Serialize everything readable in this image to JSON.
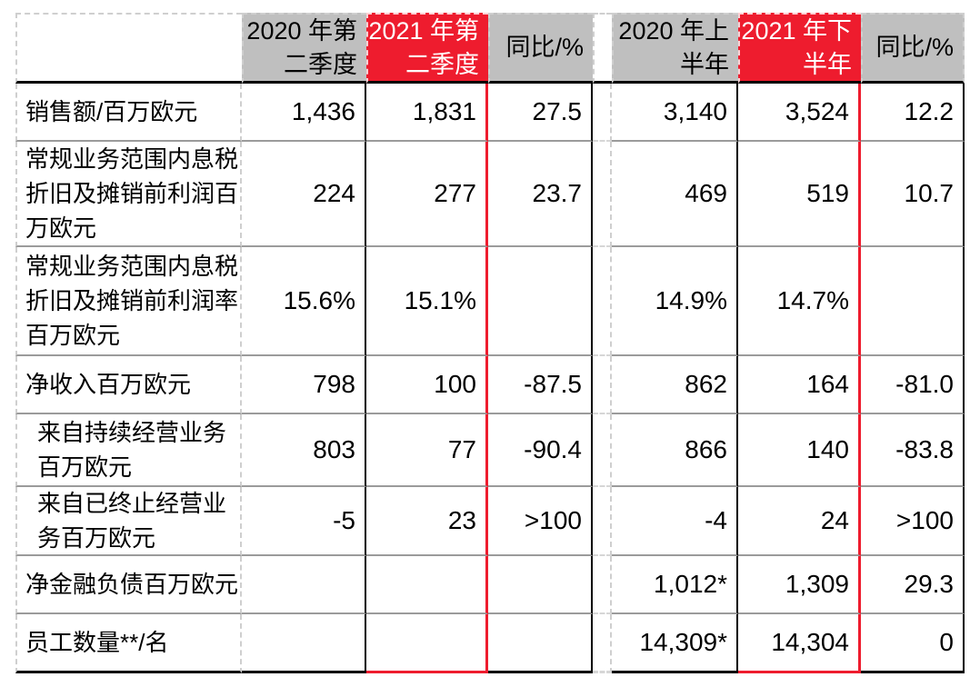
{
  "colors": {
    "red": "#EE1C2E",
    "gray": "#BFBFBF"
  },
  "table": {
    "header": [
      "",
      "2020 年第\n二季度",
      "2021 年第\n二季度",
      "同比/%",
      "",
      "2020 年上\n半年",
      "2021 年下\n半年",
      "同比/%"
    ],
    "rows": [
      {
        "label": "销售额/百万欧元",
        "values": [
          "1,436",
          "1,831",
          "27.5",
          "3,140",
          "3,524",
          "12.2"
        ]
      },
      {
        "label": "常规业务范围内息税\n折旧及摊销前利润百\n万欧元",
        "values": [
          "224",
          "277",
          "23.7",
          "469",
          "519",
          "10.7"
        ]
      },
      {
        "label": "常规业务范围内息税\n折旧及摊销前利润率\n百万欧元",
        "values": [
          "15.6%",
          "15.1%",
          "",
          "14.9%",
          "14.7%",
          ""
        ]
      },
      {
        "label": "净收入百万欧元",
        "values": [
          "798",
          "100",
          "-87.5",
          "862",
          "164",
          "-81.0"
        ]
      },
      {
        "label": "来自持续经营业务\n百万欧元",
        "values": [
          "803",
          "77",
          "-90.4",
          "866",
          "140",
          "-83.8"
        ]
      },
      {
        "label": "来自已终止经营业\n务百万欧元",
        "values": [
          "-5",
          "23",
          ">100",
          "-4",
          "24",
          ">100"
        ]
      },
      {
        "label": "净金融负债百万欧元",
        "values": [
          "",
          "",
          "",
          "1,012*",
          "1,309",
          "29.3"
        ]
      },
      {
        "label": "员工数量**/名",
        "values": [
          "",
          "",
          "",
          "14,309*",
          "14,304",
          "0"
        ]
      }
    ]
  }
}
